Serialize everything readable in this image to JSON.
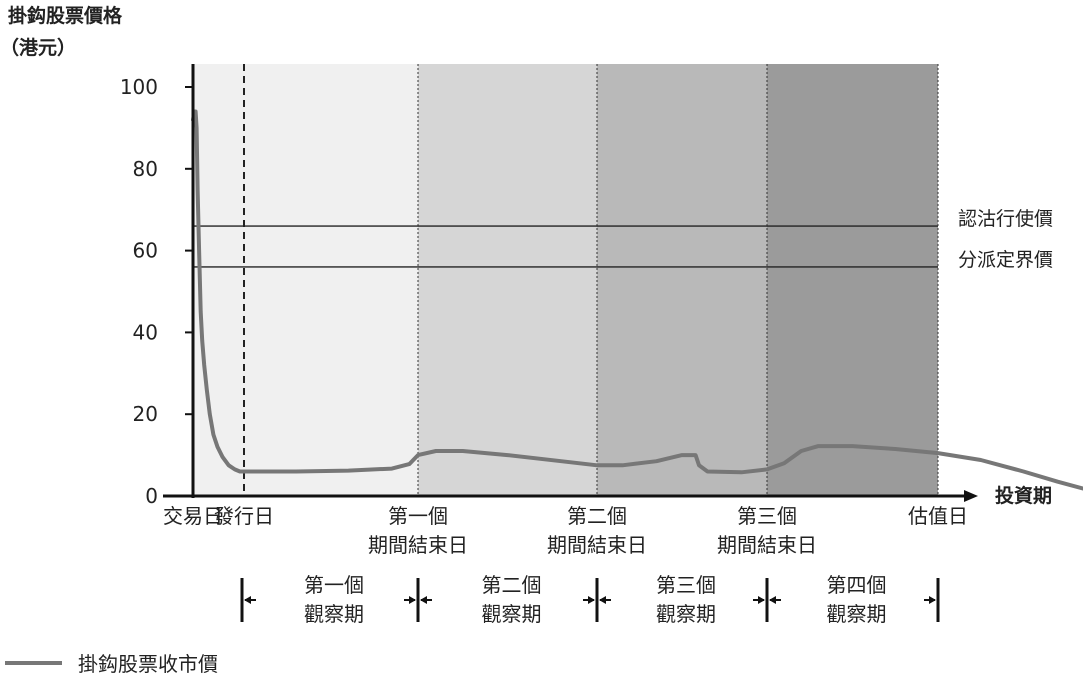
{
  "chart_data": {
    "type": "line",
    "title": "",
    "ylabel_line1": "掛鈎股票價格",
    "ylabel_line2": "（港元）",
    "xlabel": "投資期",
    "ylim": [
      0,
      100
    ],
    "y_ticks": [
      "0",
      "20",
      "40",
      "60",
      "80",
      "100"
    ],
    "x_ticks": [
      {
        "line1": "交易日",
        "line2": ""
      },
      {
        "line1": "發行日",
        "line2": ""
      },
      {
        "line1": "第一個",
        "line2": "期間結束日"
      },
      {
        "line1": "第二個",
        "line2": "期間結束日"
      },
      {
        "line1": "第三個",
        "line2": "期間結束日"
      },
      {
        "line1": "估值日",
        "line2": ""
      }
    ],
    "reference_lines": [
      {
        "label": "認沽行使價",
        "value": 66
      },
      {
        "label": "分派定界價",
        "value": 56
      }
    ],
    "shaded_periods": [
      {
        "color": "#f0f0f0"
      },
      {
        "color": "#d6d6d6"
      },
      {
        "color": "#b9b9b9"
      },
      {
        "color": "#9b9b9b"
      }
    ],
    "observation_periods": [
      {
        "line1": "第一個",
        "line2": "觀察期"
      },
      {
        "line1": "第二個",
        "line2": "觀察期"
      },
      {
        "line1": "第三個",
        "line2": "觀察期"
      },
      {
        "line1": "第四個",
        "line2": "觀察期"
      }
    ],
    "series": [
      {
        "name": "掛鈎股票收市價",
        "color": "#777777",
        "points": [
          [
            0.0,
            92
          ],
          [
            0.03,
            94
          ],
          [
            0.05,
            94
          ],
          [
            0.07,
            90
          ],
          [
            0.09,
            75
          ],
          [
            0.12,
            60
          ],
          [
            0.15,
            45
          ],
          [
            0.18,
            38
          ],
          [
            0.22,
            32
          ],
          [
            0.27,
            26
          ],
          [
            0.33,
            20
          ],
          [
            0.4,
            15
          ],
          [
            0.48,
            12
          ],
          [
            0.58,
            9.5
          ],
          [
            0.7,
            7.5
          ],
          [
            0.82,
            6.5
          ],
          [
            0.92,
            6.0
          ],
          [
            1.0,
            6.0
          ],
          [
            1.3,
            6.0
          ],
          [
            1.6,
            6.2
          ],
          [
            1.85,
            6.7
          ],
          [
            1.95,
            7.8
          ],
          [
            2.0,
            10.0
          ],
          [
            2.1,
            11.0
          ],
          [
            2.25,
            11.0
          ],
          [
            2.5,
            10.0
          ],
          [
            2.8,
            8.5
          ],
          [
            3.0,
            7.5
          ],
          [
            3.15,
            7.5
          ],
          [
            3.35,
            8.5
          ],
          [
            3.5,
            10.0
          ],
          [
            3.58,
            10.0
          ],
          [
            3.6,
            7.5
          ],
          [
            3.65,
            6.0
          ],
          [
            3.85,
            5.8
          ],
          [
            4.0,
            6.5
          ],
          [
            4.1,
            8.0
          ],
          [
            4.2,
            11.0
          ],
          [
            4.3,
            12.2
          ],
          [
            4.5,
            12.2
          ],
          [
            4.75,
            11.5
          ],
          [
            5.0,
            10.5
          ],
          [
            5.25,
            8.8
          ],
          [
            5.5,
            6.0
          ],
          [
            5.7,
            3.5
          ],
          [
            5.85,
            1.8
          ],
          [
            6.0,
            1.0
          ]
        ]
      }
    ],
    "legend": {
      "label": "掛鈎股票收市價"
    }
  }
}
